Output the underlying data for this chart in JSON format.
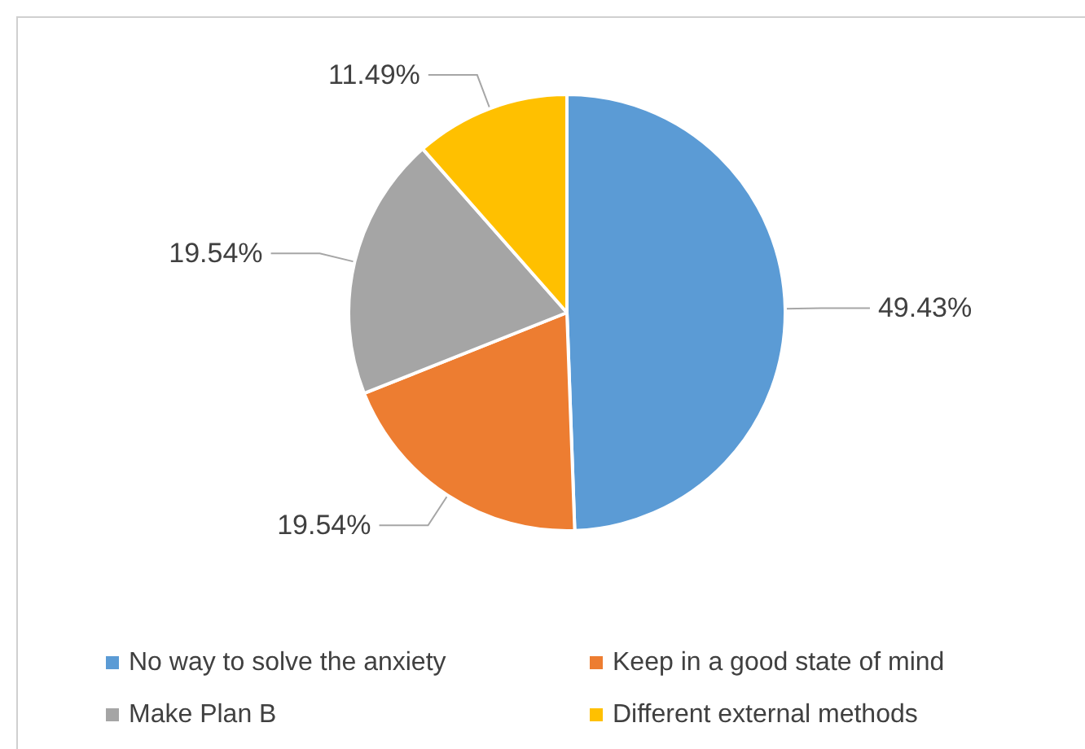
{
  "chart_data": {
    "type": "pie",
    "categories": [
      "No way to solve the anxiety",
      "Keep in a good state of mind",
      "Make Plan B",
      "Different external methods"
    ],
    "values": [
      49.43,
      19.54,
      19.54,
      11.49
    ],
    "colors": [
      "#5b9bd5",
      "#ed7d31",
      "#a5a5a5",
      "#ffc000"
    ],
    "value_labels": [
      "49.43%",
      "19.54%",
      "19.54%",
      "11.49%"
    ],
    "legend": "bottom"
  }
}
